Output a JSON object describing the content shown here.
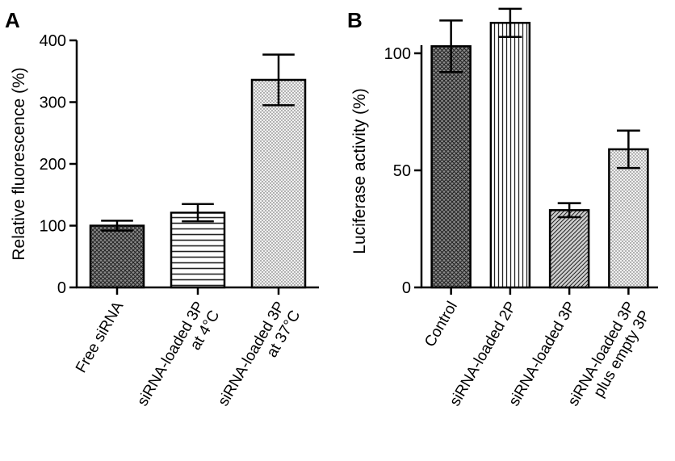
{
  "chart_data": [
    {
      "panel": "A",
      "type": "bar",
      "ylabel": "Relative fluorescence (%)",
      "ylim": [
        0,
        400
      ],
      "yticks": [
        0,
        100,
        200,
        300,
        400
      ],
      "grid": false,
      "categories": [
        [
          "Free siRNA"
        ],
        [
          "siRNA-loaded 3P",
          "at 4°C"
        ],
        [
          "siRNA-loaded 3P",
          "at 37°C"
        ]
      ],
      "values": [
        100,
        121,
        336
      ],
      "errors": [
        8,
        14,
        41
      ],
      "patterns": [
        "crosshatch",
        "horizontal",
        "dots"
      ]
    },
    {
      "panel": "B",
      "type": "bar",
      "ylabel": "Luciferase activity (%)",
      "ylim": [
        0,
        100
      ],
      "yticks": [
        0,
        50,
        100
      ],
      "grid": false,
      "categories": [
        [
          "Control"
        ],
        [
          "siRNA-loaded 2P"
        ],
        [
          "siRNA-loaded 3P"
        ],
        [
          "siRNA-loaded 3P",
          "plus empty 3P"
        ]
      ],
      "values": [
        103,
        113,
        33,
        59
      ],
      "errors": [
        11,
        6,
        3,
        8
      ],
      "patterns": [
        "crosshatch",
        "vertical",
        "diagonal",
        "dots"
      ]
    }
  ]
}
